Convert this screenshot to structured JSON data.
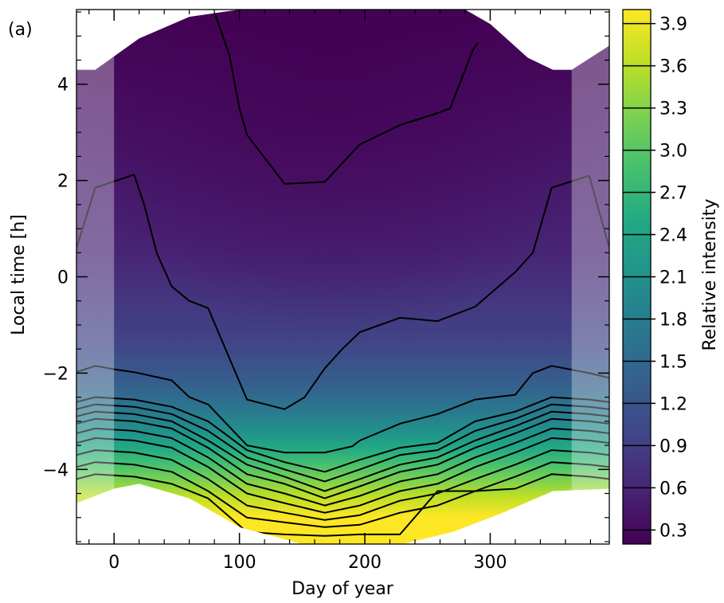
{
  "panel_label": "(a)",
  "chart_data": {
    "type": "contour",
    "xlabel": "Day of year",
    "ylabel": "Local time [h]",
    "xlim": [
      -30,
      395
    ],
    "ylim": [
      -5.55,
      5.55
    ],
    "xticks": [
      0,
      100,
      200,
      300
    ],
    "xtick_labels": [
      "0",
      "100",
      "200",
      "300"
    ],
    "yticks": [
      -4,
      -2,
      0,
      2,
      4
    ],
    "ytick_labels": [
      "−4",
      "−2",
      "0",
      "2",
      "4"
    ],
    "colorbar": {
      "label": "Relative intensity",
      "range": [
        0.2,
        4.0
      ],
      "ticks": [
        0.3,
        0.6,
        0.9,
        1.2,
        1.5,
        1.8,
        2.1,
        2.4,
        2.7,
        3.0,
        3.3,
        3.6,
        3.9
      ],
      "tick_labels": [
        "0.3",
        "0.6",
        "0.9",
        "1.2",
        "1.5",
        "1.8",
        "2.1",
        "2.4",
        "2.7",
        "3.0",
        "3.3",
        "3.6",
        "3.9"
      ],
      "colors": [
        "#440154",
        "#482475",
        "#414487",
        "#355f8d",
        "#2a788e",
        "#21918c",
        "#22a884",
        "#44bf70",
        "#7ad151",
        "#bddf26",
        "#fde725"
      ]
    },
    "shaded_x_ranges": [
      [
        -30,
        0
      ],
      [
        365,
        395
      ]
    ],
    "nodata_top": [
      [
        -30,
        4.3
      ],
      [
        -15,
        4.3
      ],
      [
        20,
        4.95
      ],
      [
        60,
        5.4
      ],
      [
        100,
        5.55
      ],
      [
        200,
        5.55
      ],
      [
        280,
        5.55
      ],
      [
        300,
        5.25
      ],
      [
        330,
        4.55
      ],
      [
        350,
        4.3
      ],
      [
        365,
        4.3
      ],
      [
        395,
        4.8
      ]
    ],
    "nodata_bottom": [
      [
        -30,
        -4.7
      ],
      [
        0,
        -4.4
      ],
      [
        20,
        -4.3
      ],
      [
        60,
        -4.6
      ],
      [
        100,
        -5.2
      ],
      [
        150,
        -5.55
      ],
      [
        230,
        -5.55
      ],
      [
        270,
        -5.3
      ],
      [
        310,
        -4.9
      ],
      [
        350,
        -4.45
      ],
      [
        395,
        -4.4
      ]
    ],
    "contours": [
      {
        "level": 0.6,
        "points": [
          [
            80,
            5.5
          ],
          [
            92,
            4.6
          ],
          [
            100,
            3.5
          ],
          [
            106,
            2.95
          ],
          [
            136,
            1.93
          ],
          [
            168,
            1.97
          ],
          [
            196,
            2.75
          ],
          [
            228,
            3.15
          ],
          [
            258,
            3.4
          ],
          [
            268,
            3.5
          ],
          [
            286,
            4.7
          ],
          [
            290,
            4.85
          ]
        ]
      },
      {
        "level": 0.9,
        "points": [
          [
            -30,
            0.6
          ],
          [
            -15,
            1.85
          ],
          [
            16,
            2.12
          ],
          [
            24,
            1.5
          ],
          [
            34,
            0.5
          ],
          [
            46,
            -0.2
          ],
          [
            60,
            -0.5
          ],
          [
            75,
            -0.65
          ],
          [
            106,
            -2.55
          ],
          [
            136,
            -2.75
          ],
          [
            152,
            -2.5
          ],
          [
            168,
            -1.9
          ],
          [
            182,
            -1.5
          ],
          [
            196,
            -1.15
          ],
          [
            228,
            -0.85
          ],
          [
            258,
            -0.92
          ],
          [
            288,
            -0.62
          ],
          [
            320,
            0.1
          ],
          [
            334,
            0.5
          ],
          [
            349,
            1.85
          ],
          [
            379,
            2.1
          ],
          [
            395,
            0.6
          ]
        ]
      },
      {
        "level": 1.2,
        "points": [
          [
            -30,
            -1.98
          ],
          [
            -15,
            -1.85
          ],
          [
            0,
            -1.92
          ],
          [
            16,
            -1.98
          ],
          [
            46,
            -2.15
          ],
          [
            60,
            -2.5
          ],
          [
            75,
            -2.65
          ],
          [
            106,
            -3.5
          ],
          [
            136,
            -3.65
          ],
          [
            168,
            -3.65
          ],
          [
            190,
            -3.52
          ],
          [
            196,
            -3.4
          ],
          [
            228,
            -3.05
          ],
          [
            258,
            -2.85
          ],
          [
            288,
            -2.55
          ],
          [
            320,
            -2.45
          ],
          [
            334,
            -2.0
          ],
          [
            349,
            -1.85
          ],
          [
            379,
            -2.0
          ],
          [
            395,
            -2.1
          ]
        ]
      },
      {
        "level": 1.5,
        "points": [
          [
            -30,
            -2.6
          ],
          [
            -15,
            -2.5
          ],
          [
            16,
            -2.55
          ],
          [
            46,
            -2.7
          ],
          [
            75,
            -3.0
          ],
          [
            106,
            -3.6
          ],
          [
            136,
            -3.85
          ],
          [
            168,
            -4.05
          ],
          [
            196,
            -3.8
          ],
          [
            228,
            -3.55
          ],
          [
            258,
            -3.45
          ],
          [
            288,
            -3.0
          ],
          [
            320,
            -2.8
          ],
          [
            349,
            -2.5
          ],
          [
            379,
            -2.55
          ],
          [
            395,
            -2.6
          ]
        ]
      },
      {
        "level": 1.8,
        "points": [
          [
            -30,
            -2.75
          ],
          [
            -15,
            -2.65
          ],
          [
            16,
            -2.7
          ],
          [
            46,
            -2.85
          ],
          [
            75,
            -3.2
          ],
          [
            106,
            -3.75
          ],
          [
            136,
            -4.0
          ],
          [
            168,
            -4.25
          ],
          [
            196,
            -4.0
          ],
          [
            228,
            -3.7
          ],
          [
            258,
            -3.6
          ],
          [
            288,
            -3.2
          ],
          [
            320,
            -2.95
          ],
          [
            349,
            -2.65
          ],
          [
            379,
            -2.7
          ],
          [
            395,
            -2.75
          ]
        ]
      },
      {
        "level": 2.1,
        "points": [
          [
            -30,
            -2.9
          ],
          [
            -15,
            -2.8
          ],
          [
            16,
            -2.85
          ],
          [
            46,
            -3.0
          ],
          [
            75,
            -3.4
          ],
          [
            106,
            -3.9
          ],
          [
            136,
            -4.15
          ],
          [
            168,
            -4.45
          ],
          [
            196,
            -4.2
          ],
          [
            228,
            -3.9
          ],
          [
            258,
            -3.75
          ],
          [
            288,
            -3.4
          ],
          [
            320,
            -3.1
          ],
          [
            349,
            -2.8
          ],
          [
            379,
            -2.85
          ],
          [
            395,
            -2.9
          ]
        ]
      },
      {
        "level": 2.4,
        "points": [
          [
            -30,
            -3.05
          ],
          [
            -15,
            -2.95
          ],
          [
            16,
            -3.0
          ],
          [
            46,
            -3.15
          ],
          [
            75,
            -3.55
          ],
          [
            106,
            -4.1
          ],
          [
            136,
            -4.3
          ],
          [
            168,
            -4.6
          ],
          [
            196,
            -4.35
          ],
          [
            228,
            -4.05
          ],
          [
            258,
            -3.9
          ],
          [
            288,
            -3.55
          ],
          [
            320,
            -3.25
          ],
          [
            349,
            -2.95
          ],
          [
            379,
            -3.0
          ],
          [
            395,
            -3.05
          ]
        ]
      },
      {
        "level": 2.7,
        "points": [
          [
            -30,
            -3.25
          ],
          [
            -15,
            -3.15
          ],
          [
            16,
            -3.2
          ],
          [
            46,
            -3.35
          ],
          [
            75,
            -3.75
          ],
          [
            106,
            -4.3
          ],
          [
            136,
            -4.5
          ],
          [
            168,
            -4.75
          ],
          [
            196,
            -4.55
          ],
          [
            228,
            -4.25
          ],
          [
            258,
            -4.1
          ],
          [
            288,
            -3.75
          ],
          [
            320,
            -3.45
          ],
          [
            349,
            -3.15
          ],
          [
            379,
            -3.2
          ],
          [
            395,
            -3.25
          ]
        ]
      },
      {
        "level": 3.0,
        "points": [
          [
            -30,
            -3.45
          ],
          [
            -15,
            -3.35
          ],
          [
            16,
            -3.4
          ],
          [
            46,
            -3.55
          ],
          [
            75,
            -3.95
          ],
          [
            106,
            -4.5
          ],
          [
            136,
            -4.7
          ],
          [
            168,
            -4.9
          ],
          [
            196,
            -4.75
          ],
          [
            228,
            -4.45
          ],
          [
            258,
            -4.3
          ],
          [
            288,
            -3.95
          ],
          [
            320,
            -3.65
          ],
          [
            349,
            -3.35
          ],
          [
            379,
            -3.4
          ],
          [
            395,
            -3.45
          ]
        ]
      },
      {
        "level": 3.3,
        "points": [
          [
            -30,
            -3.7
          ],
          [
            -15,
            -3.6
          ],
          [
            16,
            -3.65
          ],
          [
            46,
            -3.8
          ],
          [
            75,
            -4.2
          ],
          [
            106,
            -4.75
          ],
          [
            136,
            -4.9
          ],
          [
            168,
            -5.05
          ],
          [
            196,
            -4.95
          ],
          [
            228,
            -4.65
          ],
          [
            258,
            -4.5
          ],
          [
            288,
            -4.2
          ],
          [
            320,
            -3.9
          ],
          [
            349,
            -3.6
          ],
          [
            379,
            -3.65
          ],
          [
            395,
            -3.7
          ]
        ]
      },
      {
        "level": 3.6,
        "points": [
          [
            -30,
            -3.95
          ],
          [
            -15,
            -3.85
          ],
          [
            16,
            -3.9
          ],
          [
            46,
            -4.05
          ],
          [
            75,
            -4.45
          ],
          [
            106,
            -5.0
          ],
          [
            136,
            -5.1
          ],
          [
            168,
            -5.2
          ],
          [
            196,
            -5.15
          ],
          [
            228,
            -4.9
          ],
          [
            258,
            -4.75
          ],
          [
            288,
            -4.45
          ],
          [
            320,
            -4.15
          ],
          [
            349,
            -3.85
          ],
          [
            379,
            -3.9
          ],
          [
            395,
            -3.95
          ]
        ]
      },
      {
        "level": 3.9,
        "points": [
          [
            -30,
            -4.2
          ],
          [
            -15,
            -4.1
          ],
          [
            16,
            -4.15
          ],
          [
            46,
            -4.3
          ],
          [
            75,
            -4.6
          ],
          [
            106,
            -5.3
          ],
          [
            136,
            -5.35
          ],
          [
            168,
            -5.38
          ],
          [
            196,
            -5.35
          ],
          [
            228,
            -5.35
          ],
          [
            258,
            -4.45
          ],
          [
            288,
            -4.45
          ],
          [
            320,
            -4.4
          ],
          [
            349,
            -4.1
          ],
          [
            379,
            -4.15
          ],
          [
            395,
            -4.2
          ]
        ]
      }
    ]
  }
}
